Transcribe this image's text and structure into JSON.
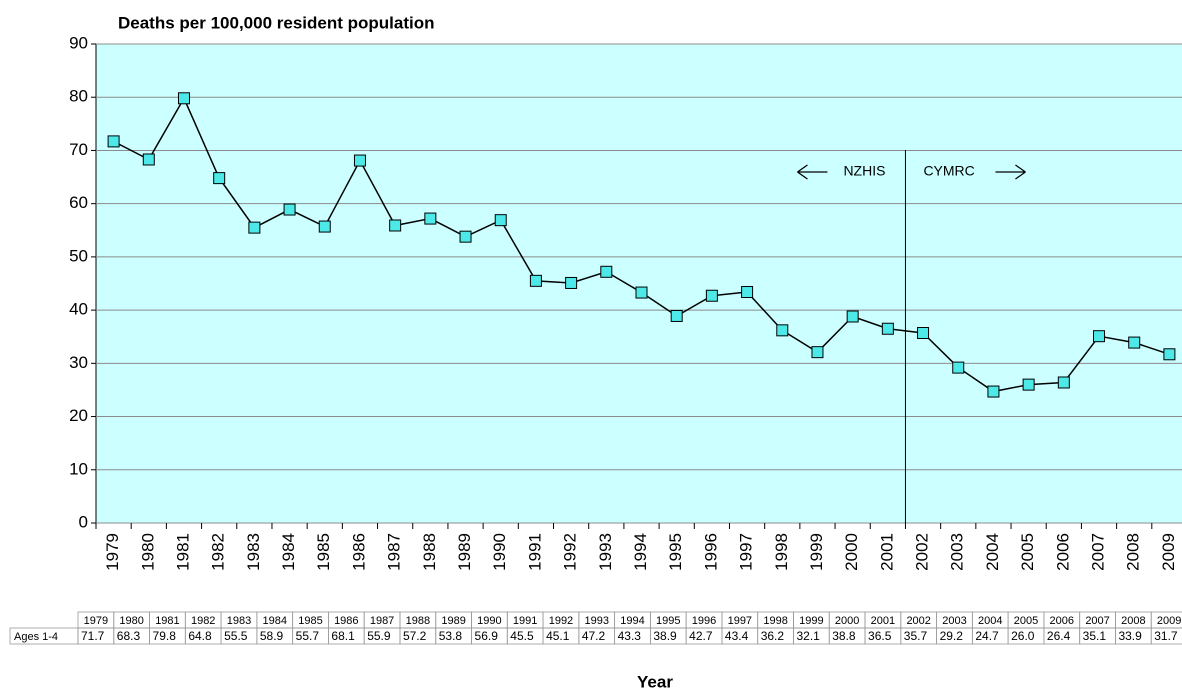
{
  "chart_data": {
    "type": "line",
    "title": "Deaths per 100,000 resident population",
    "x_label": "Year",
    "categories": [
      "1979",
      "1980",
      "1981",
      "1982",
      "1983",
      "1984",
      "1985",
      "1986",
      "1987",
      "1988",
      "1989",
      "1990",
      "1991",
      "1992",
      "1993",
      "1994",
      "1995",
      "1996",
      "1997",
      "1998",
      "1999",
      "2000",
      "2001",
      "2002",
      "2003",
      "2004",
      "2005",
      "2006",
      "2007",
      "2008",
      "2009"
    ],
    "series": [
      {
        "name": "Ages 1-4",
        "color": "#4de8e8",
        "values": [
          71.7,
          68.3,
          79.8,
          64.8,
          55.5,
          58.9,
          55.7,
          68.1,
          55.9,
          57.2,
          53.8,
          56.9,
          45.5,
          45.1,
          47.2,
          43.3,
          38.9,
          42.7,
          43.4,
          36.2,
          32.1,
          38.8,
          36.5,
          35.7,
          29.2,
          24.7,
          26.0,
          26.4,
          35.1,
          33.9,
          31.7
        ],
        "value_labels": [
          "71.7",
          "68.3",
          "79.8",
          "64.8",
          "55.5",
          "58.9",
          "55.7",
          "68.1",
          "55.9",
          "57.2",
          "53.8",
          "56.9",
          "45.5",
          "45.1",
          "47.2",
          "43.3",
          "38.9",
          "42.7",
          "43.4",
          "36.2",
          "32.1",
          "38.8",
          "36.5",
          "35.7",
          "29.2",
          "24.7",
          "26.0",
          "26.4",
          "35.1",
          "33.9",
          "31.7"
        ]
      }
    ],
    "ylim": [
      0,
      90
    ],
    "yticks": [
      0,
      10,
      20,
      30,
      40,
      50,
      60,
      70,
      80,
      90
    ],
    "grid": true,
    "annotations": [
      {
        "text": "NZHIS",
        "direction": "left"
      },
      {
        "text": "CYMRC",
        "direction": "right"
      }
    ]
  }
}
